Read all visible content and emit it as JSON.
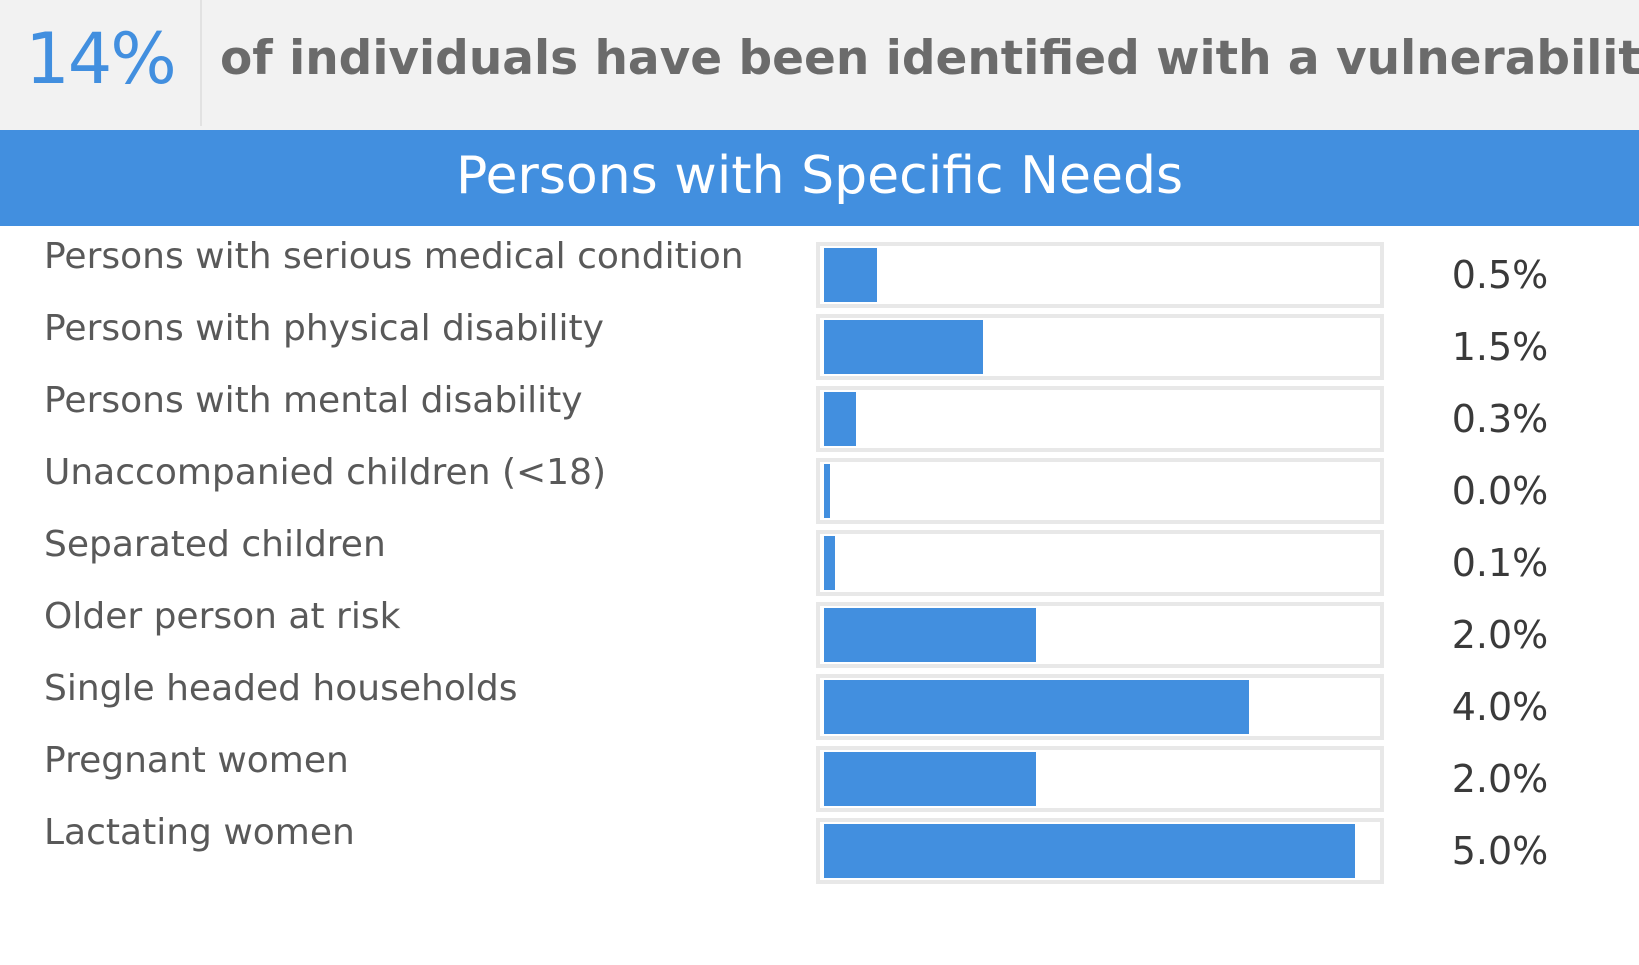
{
  "header": {
    "stat": "14%",
    "statement": "of individuals have been identified with a vulnerability"
  },
  "colors": {
    "accent": "#428fdf",
    "banner_background": "#f2f2f2",
    "label_text": "#595959"
  },
  "chart_data": {
    "type": "bar",
    "title": "Persons with Specific Needs",
    "orientation": "horizontal",
    "xlim": [
      0,
      5.2
    ],
    "categories": [
      "Persons with serious medical condition",
      "Persons with physical disability",
      "Persons with mental disability",
      "Unaccompanied children (<18)",
      "Separated children",
      "Older person at risk",
      "Single headed households",
      "Pregnant women",
      "Lactating women"
    ],
    "values": [
      0.5,
      1.5,
      0.3,
      0.0,
      0.1,
      2.0,
      4.0,
      2.0,
      5.0
    ],
    "value_labels": [
      "0.5%",
      "1.5%",
      "0.3%",
      "0.0%",
      "0.1%",
      "2.0%",
      "4.0%",
      "2.0%",
      "5.0%"
    ]
  }
}
